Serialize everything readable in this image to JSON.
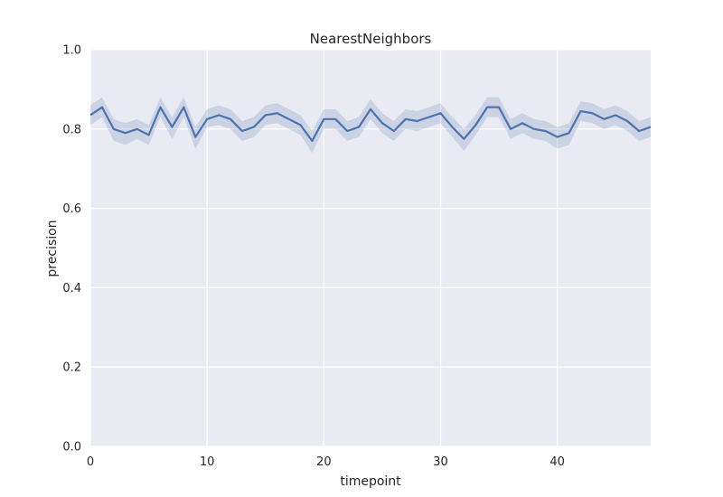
{
  "chart_data": {
    "type": "line",
    "title": "NearestNeighbors",
    "xlabel": "timepoint",
    "ylabel": "precision",
    "xlim": [
      0,
      48
    ],
    "ylim": [
      0.0,
      1.0
    ],
    "xticks": [
      0,
      10,
      20,
      30,
      40
    ],
    "xtick_labels": [
      "0",
      "10",
      "20",
      "30",
      "40"
    ],
    "yticks": [
      0.0,
      0.2,
      0.4,
      0.6,
      0.8,
      1.0
    ],
    "ytick_labels": [
      "0.0",
      "0.2",
      "0.4",
      "0.6",
      "0.8",
      "1.0"
    ],
    "grid": true,
    "colors": {
      "background": "#eaeaf2",
      "grid": "#ffffff",
      "line": "#4c72b0",
      "band": "#4c72b0"
    },
    "series": [
      {
        "x": [
          0,
          1,
          2,
          3,
          4,
          5,
          6,
          7,
          8,
          9,
          10,
          11,
          12,
          13,
          14,
          15,
          16,
          17,
          18,
          19,
          20,
          21,
          22,
          23,
          24,
          25,
          26,
          27,
          28,
          29,
          30,
          31,
          32,
          33,
          34,
          35,
          36,
          37,
          38,
          39,
          40,
          41,
          42,
          43,
          44,
          45,
          46,
          47,
          48
        ],
        "values": [
          0.835,
          0.855,
          0.8,
          0.79,
          0.8,
          0.785,
          0.855,
          0.805,
          0.855,
          0.78,
          0.825,
          0.835,
          0.825,
          0.795,
          0.805,
          0.835,
          0.84,
          0.825,
          0.81,
          0.77,
          0.825,
          0.825,
          0.795,
          0.805,
          0.85,
          0.815,
          0.795,
          0.825,
          0.82,
          0.83,
          0.84,
          0.805,
          0.775,
          0.81,
          0.855,
          0.855,
          0.8,
          0.815,
          0.8,
          0.795,
          0.78,
          0.79,
          0.845,
          0.84,
          0.825,
          0.835,
          0.82,
          0.795,
          0.805
        ],
        "lower": [
          0.81,
          0.83,
          0.77,
          0.76,
          0.775,
          0.76,
          0.83,
          0.775,
          0.83,
          0.75,
          0.805,
          0.81,
          0.8,
          0.77,
          0.78,
          0.81,
          0.815,
          0.8,
          0.785,
          0.74,
          0.8,
          0.8,
          0.77,
          0.78,
          0.825,
          0.79,
          0.77,
          0.8,
          0.795,
          0.805,
          0.815,
          0.78,
          0.745,
          0.785,
          0.83,
          0.83,
          0.775,
          0.79,
          0.775,
          0.77,
          0.75,
          0.76,
          0.82,
          0.815,
          0.8,
          0.81,
          0.795,
          0.77,
          0.78
        ],
        "upper": [
          0.86,
          0.88,
          0.825,
          0.815,
          0.825,
          0.81,
          0.88,
          0.83,
          0.88,
          0.805,
          0.85,
          0.86,
          0.85,
          0.82,
          0.83,
          0.86,
          0.865,
          0.85,
          0.835,
          0.795,
          0.85,
          0.85,
          0.82,
          0.83,
          0.875,
          0.84,
          0.82,
          0.85,
          0.845,
          0.855,
          0.865,
          0.83,
          0.8,
          0.835,
          0.88,
          0.88,
          0.825,
          0.84,
          0.825,
          0.82,
          0.805,
          0.815,
          0.87,
          0.865,
          0.85,
          0.86,
          0.845,
          0.82,
          0.83
        ]
      }
    ]
  }
}
